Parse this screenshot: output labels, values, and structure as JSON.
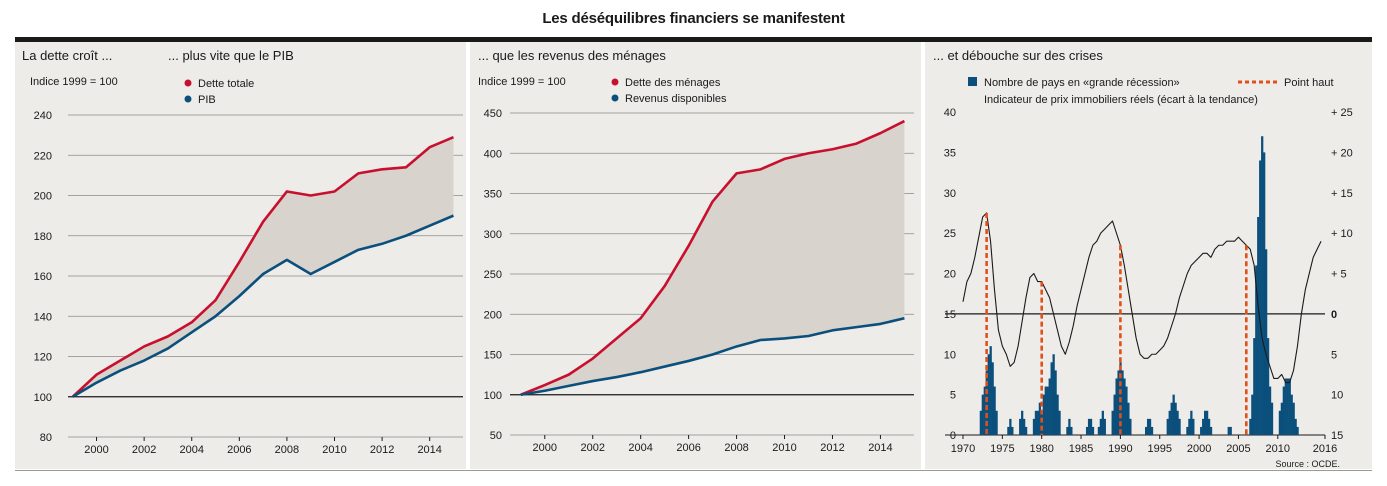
{
  "title": "Les déséquilibres financiers se manifestent",
  "source": "Source : OCDE.",
  "colors": {
    "red": "#c8102e",
    "blue": "#0b4f7c",
    "fill": "#d8d3cc",
    "bg": "#eeece9",
    "orange": "#e0501b"
  },
  "chart_data": [
    {
      "type": "line",
      "heading_left": "La dette croît ...",
      "heading_right": "... plus vite que le PIB",
      "unit_label": "Indice 1999 = 100",
      "ylim": [
        80,
        240
      ],
      "yticks": [
        80,
        100,
        120,
        140,
        160,
        180,
        200,
        220,
        240
      ],
      "xticks": [
        2000,
        2002,
        2004,
        2006,
        2008,
        2010,
        2012,
        2014
      ],
      "xlim": [
        1998.8,
        2015.4
      ],
      "x": [
        1999,
        2000,
        2001,
        2002,
        2003,
        2004,
        2005,
        2006,
        2007,
        2008,
        2009,
        2010,
        2011,
        2012,
        2013,
        2014,
        2015
      ],
      "series": [
        {
          "name": "Dette totale",
          "color": "#c8102e",
          "values": [
            100,
            111,
            118,
            125,
            130,
            137,
            148,
            167,
            187,
            202,
            200,
            202,
            211,
            213,
            214,
            224,
            229
          ]
        },
        {
          "name": "PIB",
          "color": "#0b4f7c",
          "values": [
            100,
            107,
            113,
            118,
            124,
            132,
            140,
            150,
            161,
            168,
            161,
            167,
            173,
            176,
            180,
            185,
            190
          ]
        }
      ],
      "shaded_between": true
    },
    {
      "type": "line",
      "heading": "... que les revenus des ménages",
      "unit_label": "Indice 1999 = 100",
      "ylim": [
        50,
        450
      ],
      "yticks": [
        50,
        100,
        150,
        200,
        250,
        300,
        350,
        400,
        450
      ],
      "xticks": [
        2000,
        2002,
        2004,
        2006,
        2008,
        2010,
        2012,
        2014
      ],
      "xlim": [
        1998.8,
        2015.4
      ],
      "x": [
        1999,
        2000,
        2001,
        2002,
        2003,
        2004,
        2005,
        2006,
        2007,
        2008,
        2009,
        2010,
        2011,
        2012,
        2013,
        2014,
        2015
      ],
      "series": [
        {
          "name": "Dette des ménages",
          "color": "#c8102e",
          "values": [
            100,
            112,
            125,
            145,
            170,
            195,
            235,
            285,
            340,
            375,
            380,
            393,
            400,
            405,
            412,
            425,
            440
          ]
        },
        {
          "name": "Revenus disponibles",
          "color": "#0b4f7c",
          "values": [
            100,
            105,
            111,
            117,
            122,
            128,
            135,
            142,
            150,
            160,
            168,
            170,
            173,
            180,
            184,
            188,
            195
          ]
        }
      ],
      "shaded_between": true
    },
    {
      "type": "bar+line",
      "heading": "... et débouche sur des crises",
      "legend_bars": "Nombre de pays en «grande récession»",
      "legend_peak": "Point haut",
      "legend_line": "Indicateur de prix immobiliers réels (écart à la tendance)",
      "left_ylim": [
        0,
        40
      ],
      "left_yticks": [
        0,
        5,
        10,
        15,
        20,
        25,
        30,
        35,
        40
      ],
      "right_ticks": [
        {
          "label": "15",
          "left_value": 0
        },
        {
          "label": "10",
          "left_value": 5
        },
        {
          "label": "5",
          "left_value": 10
        },
        {
          "label": "0",
          "left_value": 15
        },
        {
          "label": "+ 5",
          "left_value": 20
        },
        {
          "label": "+ 10",
          "left_value": 25
        },
        {
          "label": "+ 15",
          "left_value": 30
        },
        {
          "label": "+ 20",
          "left_value": 35
        },
        {
          "label": "+ 25",
          "left_value": 40
        }
      ],
      "xlim": [
        1970,
        2016
      ],
      "xticks": [
        1970,
        1975,
        1980,
        1985,
        1990,
        1995,
        2000,
        2005,
        2010,
        2016
      ],
      "bars": [
        [
          1972.25,
          3
        ],
        [
          1972.5,
          5
        ],
        [
          1972.75,
          6
        ],
        [
          1973,
          8
        ],
        [
          1973.25,
          10
        ],
        [
          1973.5,
          11
        ],
        [
          1973.75,
          9
        ],
        [
          1974,
          6
        ],
        [
          1974.25,
          3
        ],
        [
          1975.75,
          1
        ],
        [
          1976,
          2
        ],
        [
          1976.25,
          1
        ],
        [
          1977.25,
          2
        ],
        [
          1977.5,
          3
        ],
        [
          1977.75,
          2
        ],
        [
          1978,
          1
        ],
        [
          1979,
          2
        ],
        [
          1979.25,
          3
        ],
        [
          1979.5,
          3
        ],
        [
          1979.75,
          4
        ],
        [
          1980,
          3
        ],
        [
          1980.25,
          5
        ],
        [
          1980.5,
          6
        ],
        [
          1980.75,
          6
        ],
        [
          1981,
          7
        ],
        [
          1981.25,
          9
        ],
        [
          1981.5,
          10
        ],
        [
          1981.75,
          8
        ],
        [
          1982,
          5
        ],
        [
          1982.25,
          3
        ],
        [
          1983.25,
          1
        ],
        [
          1983.5,
          2
        ],
        [
          1983.75,
          1
        ],
        [
          1985.75,
          1
        ],
        [
          1986,
          2
        ],
        [
          1986.25,
          2
        ],
        [
          1986.5,
          1
        ],
        [
          1987.25,
          1
        ],
        [
          1987.5,
          2
        ],
        [
          1987.75,
          3
        ],
        [
          1988,
          2
        ],
        [
          1989,
          3
        ],
        [
          1989.25,
          5
        ],
        [
          1989.5,
          7
        ],
        [
          1989.75,
          8
        ],
        [
          1990,
          9
        ],
        [
          1990.25,
          8
        ],
        [
          1990.5,
          7
        ],
        [
          1990.75,
          6
        ],
        [
          1991,
          4
        ],
        [
          1991.25,
          2
        ],
        [
          1993.25,
          1
        ],
        [
          1993.5,
          2
        ],
        [
          1993.75,
          2
        ],
        [
          1994,
          1
        ],
        [
          1996,
          2
        ],
        [
          1996.25,
          3
        ],
        [
          1996.5,
          4
        ],
        [
          1996.75,
          5
        ],
        [
          1997,
          4
        ],
        [
          1997.25,
          3
        ],
        [
          1997.5,
          2
        ],
        [
          1998.5,
          1
        ],
        [
          1998.75,
          2
        ],
        [
          1999,
          3
        ],
        [
          1999.25,
          2
        ],
        [
          2000.25,
          1
        ],
        [
          2000.5,
          2
        ],
        [
          2000.75,
          3
        ],
        [
          2001,
          3
        ],
        [
          2001.25,
          2
        ],
        [
          2001.5,
          1
        ],
        [
          2003.75,
          1
        ],
        [
          2004,
          1
        ],
        [
          2006.5,
          2
        ],
        [
          2006.75,
          5
        ],
        [
          2007,
          12
        ],
        [
          2007.25,
          21
        ],
        [
          2007.5,
          27
        ],
        [
          2007.75,
          34
        ],
        [
          2008,
          37
        ],
        [
          2008.25,
          35
        ],
        [
          2008.5,
          23
        ],
        [
          2008.75,
          12
        ],
        [
          2009,
          6
        ],
        [
          2009.25,
          4
        ],
        [
          2010.25,
          3
        ],
        [
          2010.5,
          4
        ],
        [
          2010.75,
          6
        ],
        [
          2011,
          7
        ],
        [
          2011.25,
          7
        ],
        [
          2011.5,
          7
        ],
        [
          2011.75,
          5
        ],
        [
          2012,
          4
        ],
        [
          2012.25,
          2
        ],
        [
          2012.5,
          1
        ]
      ],
      "peak_years": [
        1973,
        1980,
        1990,
        2006
      ],
      "price_indicator": [
        [
          1970,
          16.5
        ],
        [
          1970.5,
          19
        ],
        [
          1971,
          20
        ],
        [
          1971.5,
          22
        ],
        [
          1972,
          24.5
        ],
        [
          1972.5,
          27
        ],
        [
          1973,
          27.5
        ],
        [
          1973.5,
          24
        ],
        [
          1974,
          18
        ],
        [
          1974.5,
          13
        ],
        [
          1975,
          11
        ],
        [
          1975.5,
          10
        ],
        [
          1976,
          8.5
        ],
        [
          1976.5,
          9
        ],
        [
          1977,
          11
        ],
        [
          1977.5,
          14
        ],
        [
          1978,
          17
        ],
        [
          1978.5,
          19.5
        ],
        [
          1979,
          20
        ],
        [
          1979.5,
          19
        ],
        [
          1980,
          19
        ],
        [
          1980.5,
          18
        ],
        [
          1981,
          17
        ],
        [
          1981.5,
          15
        ],
        [
          1982,
          13
        ],
        [
          1982.5,
          11
        ],
        [
          1983,
          10
        ],
        [
          1983.5,
          11.5
        ],
        [
          1984,
          13.5
        ],
        [
          1984.5,
          16
        ],
        [
          1985,
          18
        ],
        [
          1985.5,
          20
        ],
        [
          1986,
          22
        ],
        [
          1986.5,
          23.5
        ],
        [
          1987,
          24
        ],
        [
          1987.5,
          25
        ],
        [
          1988,
          25.5
        ],
        [
          1988.5,
          26
        ],
        [
          1989,
          26.5
        ],
        [
          1989.5,
          25
        ],
        [
          1990,
          23.5
        ],
        [
          1990.5,
          21
        ],
        [
          1991,
          18
        ],
        [
          1991.5,
          15
        ],
        [
          1992,
          12
        ],
        [
          1992.5,
          10
        ],
        [
          1993,
          9.5
        ],
        [
          1993.5,
          9.5
        ],
        [
          1994,
          10
        ],
        [
          1994.5,
          10
        ],
        [
          1995,
          10.5
        ],
        [
          1995.5,
          11
        ],
        [
          1996,
          12
        ],
        [
          1996.5,
          13.5
        ],
        [
          1997,
          15
        ],
        [
          1997.5,
          17
        ],
        [
          1998,
          18.5
        ],
        [
          1998.5,
          20
        ],
        [
          1999,
          21
        ],
        [
          1999.5,
          21.5
        ],
        [
          2000,
          22
        ],
        [
          2000.5,
          22.5
        ],
        [
          2001,
          22.5
        ],
        [
          2001.5,
          22
        ],
        [
          2002,
          23
        ],
        [
          2002.5,
          23.5
        ],
        [
          2003,
          23.5
        ],
        [
          2003.5,
          24
        ],
        [
          2004,
          24
        ],
        [
          2004.5,
          24
        ],
        [
          2005,
          24.5
        ],
        [
          2005.5,
          24
        ],
        [
          2006,
          23.5
        ],
        [
          2006.5,
          23
        ],
        [
          2007,
          21
        ],
        [
          2007.5,
          16
        ],
        [
          2008,
          12
        ],
        [
          2008.5,
          10
        ],
        [
          2009,
          8.5
        ],
        [
          2009.5,
          7
        ],
        [
          2010,
          7
        ],
        [
          2010.5,
          7.5
        ],
        [
          2011,
          6.5
        ],
        [
          2011.5,
          6.5
        ],
        [
          2012,
          8
        ],
        [
          2012.5,
          11
        ],
        [
          2013,
          15
        ],
        [
          2013.5,
          18
        ],
        [
          2014,
          20
        ],
        [
          2014.5,
          22
        ],
        [
          2015,
          23
        ],
        [
          2015.5,
          24
        ]
      ]
    }
  ]
}
